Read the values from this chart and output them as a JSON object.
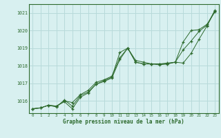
{
  "bg_color": "#d8f0f0",
  "grid_color": "#b8dada",
  "line_color": "#2d6a2d",
  "text_color": "#2d6a2d",
  "xlabel": "Graphe pression niveau de la mer (hPa)",
  "ylim": [
    1015.3,
    1021.5
  ],
  "xlim": [
    -0.5,
    23.5
  ],
  "yticks": [
    1016,
    1017,
    1018,
    1019,
    1020,
    1021
  ],
  "xticks": [
    0,
    1,
    2,
    3,
    4,
    5,
    6,
    7,
    8,
    9,
    10,
    11,
    12,
    13,
    14,
    15,
    16,
    17,
    18,
    19,
    20,
    21,
    22,
    23
  ],
  "series1_x": [
    0,
    1,
    2,
    3,
    4,
    5,
    6,
    7,
    8,
    9,
    10,
    11,
    12,
    13,
    14,
    15,
    16,
    17,
    18,
    19,
    20,
    21,
    22,
    23
  ],
  "series1_y": [
    1015.55,
    1015.6,
    1015.75,
    1015.7,
    1015.95,
    1015.55,
    1016.2,
    1016.45,
    1016.95,
    1017.15,
    1017.35,
    1018.75,
    1019.0,
    1018.2,
    1018.1,
    1018.1,
    1018.1,
    1018.1,
    1018.2,
    1018.15,
    1018.7,
    1019.5,
    1020.25,
    1021.1
  ],
  "series2_x": [
    0,
    1,
    2,
    3,
    4,
    5,
    6,
    7,
    8,
    9,
    10,
    11,
    12,
    13,
    14,
    15,
    16,
    17,
    18,
    19,
    20,
    21,
    22,
    23
  ],
  "series2_y": [
    1015.55,
    1015.6,
    1015.75,
    1015.7,
    1016.0,
    1015.9,
    1016.35,
    1016.6,
    1017.05,
    1017.2,
    1017.4,
    1018.45,
    1019.0,
    1018.2,
    1018.1,
    1018.1,
    1018.05,
    1018.1,
    1018.2,
    1018.9,
    1019.4,
    1019.95,
    1020.3,
    1021.15
  ],
  "series3_x": [
    0,
    1,
    2,
    3,
    4,
    5,
    6,
    7,
    8,
    9,
    10,
    11,
    12,
    13,
    14,
    15,
    16,
    17,
    18,
    19,
    20,
    21,
    22,
    23
  ],
  "series3_y": [
    1015.55,
    1015.6,
    1015.75,
    1015.65,
    1016.05,
    1015.7,
    1016.3,
    1016.5,
    1016.95,
    1017.1,
    1017.3,
    1018.35,
    1019.0,
    1018.3,
    1018.2,
    1018.1,
    1018.1,
    1018.15,
    1018.2,
    1019.35,
    1020.0,
    1020.05,
    1020.35,
    1021.05
  ]
}
